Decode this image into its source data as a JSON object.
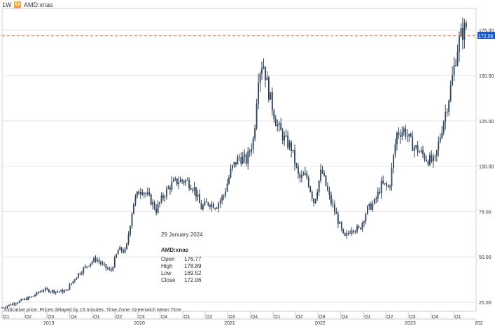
{
  "header": {
    "interval": "1W",
    "symbol": "AMD:xnas"
  },
  "tooltip": {
    "date": "29 January 2024",
    "symbol": "AMD:xnas",
    "rows": [
      {
        "label": "Open",
        "value": "176.77"
      },
      {
        "label": "High",
        "value": "178.89"
      },
      {
        "label": "Low",
        "value": "169.52"
      },
      {
        "label": "Close",
        "value": "172.06"
      }
    ]
  },
  "footnote": "Indicative price. Prices delayed by 15 minutes.   Time Zone: Greenwich Mean Time",
  "colors": {
    "candle": "#2a3f5a",
    "last_price_line": "#e2622b",
    "last_price_label_bg": "#1a56c4",
    "grid": "#e6e6e6"
  },
  "chart_data": {
    "type": "candlestick",
    "title": "",
    "ylim": [
      20,
      187
    ],
    "y_ticks": [
      "175.00",
      "150.00",
      "125.00",
      "100.00",
      "75.00",
      "50.00",
      "25.00"
    ],
    "y_tick_values": [
      175,
      150,
      125,
      100,
      75,
      50,
      25
    ],
    "last_price": {
      "value": 172,
      "label": "172.06"
    },
    "quarter_labels": [
      "Q1",
      "Q2",
      "Q3",
      "Q4",
      "Q1",
      "Q2",
      "Q3",
      "Q4",
      "Q1",
      "Q2",
      "Q3",
      "Q4",
      "Q1",
      "Q2",
      "Q3",
      "Q4",
      "Q1",
      "Q2",
      "Q3",
      "Q4",
      "Q1"
    ],
    "year_labels": [
      "2019",
      "2020",
      "2021",
      "2022",
      "2023",
      "202"
    ],
    "x_start": "2019-01-01",
    "x_end": "2024-03-31",
    "series": [
      {
        "dates": [
          "2019-01-01",
          "2019-03-01",
          "2019-05-01",
          "2019-06-15",
          "2019-08-01",
          "2019-09-15",
          "2019-11-01",
          "2019-12-15",
          "2020-01-15",
          "2020-02-15",
          "2020-03-15",
          "2020-04-15",
          "2020-05-15",
          "2020-06-15",
          "2020-07-15",
          "2020-08-15",
          "2020-09-15",
          "2020-10-15",
          "2020-11-15",
          "2020-12-15",
          "2021-01-15",
          "2021-02-15",
          "2021-03-15",
          "2021-04-15",
          "2021-05-15",
          "2021-06-15",
          "2021-07-15",
          "2021-08-15",
          "2021-09-15",
          "2021-10-15",
          "2021-11-01",
          "2021-11-20",
          "2021-12-15",
          "2022-01-15",
          "2022-02-15",
          "2022-03-15",
          "2022-04-15",
          "2022-05-15",
          "2022-06-15",
          "2022-07-15",
          "2022-08-15",
          "2022-09-15",
          "2022-10-15",
          "2022-11-15",
          "2022-12-15",
          "2023-01-15",
          "2023-02-15",
          "2023-03-15",
          "2023-04-15",
          "2023-05-15",
          "2023-06-15",
          "2023-07-15",
          "2023-08-15",
          "2023-09-15",
          "2023-10-15",
          "2023-11-15",
          "2023-12-15",
          "2024-01-15",
          "2024-01-29",
          "2024-02-15",
          "2024-02-25"
        ],
        "close": [
          22,
          25,
          28,
          32,
          31,
          31,
          40,
          46,
          49,
          45,
          42,
          54,
          53,
          80,
          88,
          83,
          76,
          84,
          90,
          92,
          92,
          88,
          77,
          80,
          78,
          84,
          98,
          105,
          103,
          116,
          150,
          158,
          140,
          123,
          115,
          110,
          93,
          95,
          80,
          98,
          83,
          72,
          60,
          66,
          65,
          76,
          80,
          90,
          88,
          118,
          120,
          112,
          108,
          104,
          102,
          122,
          140,
          165,
          172,
          176,
          178
        ]
      }
    ]
  }
}
